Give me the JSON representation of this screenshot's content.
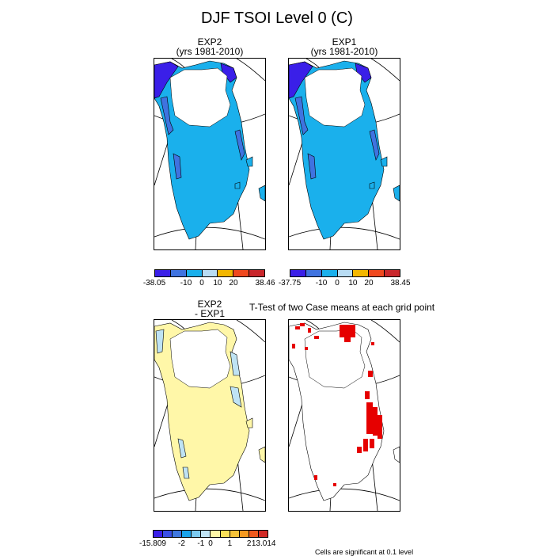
{
  "title": "DJF TSOI Level 0 (C)",
  "panels": {
    "exp2": {
      "title_line1": "EXP2",
      "title_line2": "(yrs 1981-2010)"
    },
    "exp1": {
      "title_line1": "EXP1",
      "title_line2": "(yrs 1981-2010)"
    },
    "diff": {
      "title_line1": "EXP2",
      "title_line2": "- EXP1"
    },
    "ttest": {
      "title": "T-Test of two Case means at each grid point"
    }
  },
  "colorbars": {
    "exp2": {
      "colors": [
        "#3a1fe8",
        "#3f73e0",
        "#1ab0ec",
        "#b8dcf3",
        "#f3b700",
        "#f0481e",
        "#c9262b"
      ],
      "labels": [
        "-38.05",
        "-10",
        "0",
        "10",
        "20",
        "38.46"
      ]
    },
    "exp1": {
      "colors": [
        "#3a1fe8",
        "#3f73e0",
        "#1ab0ec",
        "#b8dcf3",
        "#f3b700",
        "#f0481e",
        "#c9262b"
      ],
      "labels": [
        "-37.75",
        "-10",
        "0",
        "10",
        "20",
        "38.45"
      ]
    },
    "diff": {
      "colors": [
        "#3a1fe8",
        "#3a4fe6",
        "#3f78e0",
        "#1aa3ec",
        "#7ccaf0",
        "#bfe3f4",
        "#fff7a8",
        "#f9e05a",
        "#f5c33a",
        "#f59a22",
        "#ef5a1e",
        "#d12a26"
      ],
      "labels": [
        "-15.809",
        "-2",
        "-1",
        "0",
        "1",
        "2",
        "13.014"
      ]
    }
  },
  "footnote": "Cells are significant at 0.1 level",
  "map_colors": {
    "exp_main": "#1ab0ec",
    "exp_mid": "#3f73e0",
    "exp_dark": "#3a1fe8",
    "diff_main": "#fff7a8",
    "diff_light_blue": "#bfe3f4",
    "significant": "#e60000"
  }
}
